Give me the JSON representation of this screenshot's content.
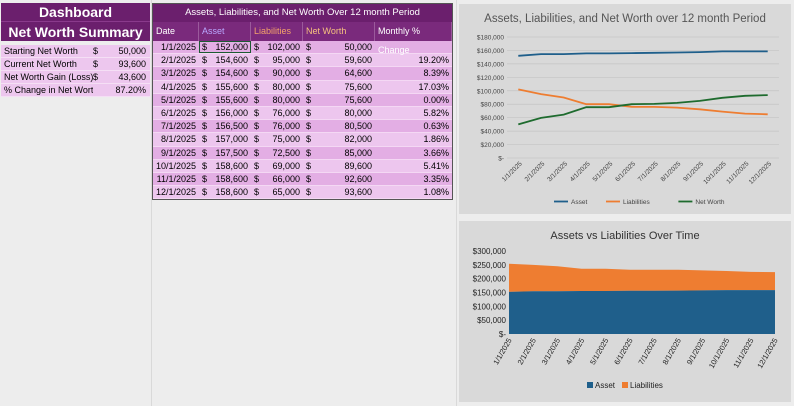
{
  "summary": {
    "title1": "Dashboard",
    "title2": "Net Worth Summary",
    "rows": [
      {
        "label": "Starting Net Worth",
        "cur": "$",
        "value": "50,000"
      },
      {
        "label": "Current Net Worth",
        "cur": "$",
        "value": "93,600"
      },
      {
        "label": "Net Worth Gain (Loss)",
        "cur": "$",
        "value": "43,600"
      },
      {
        "label": "% Change in Net Worth",
        "cur": "",
        "value": "87.20%"
      }
    ]
  },
  "table": {
    "title": "Assets, Liabilities, and Net Worth Over 12 month Period",
    "headers": {
      "date": "Date",
      "asset": "Asset",
      "liabilities": "Liabilities",
      "net_worth": "Net Worth",
      "pct": "Monthly % Change"
    },
    "rows": [
      {
        "date": "1/1/2025",
        "asset": "152,000",
        "liab": "102,000",
        "nw": "50,000",
        "pct": ""
      },
      {
        "date": "2/1/2025",
        "asset": "154,600",
        "liab": "95,000",
        "nw": "59,600",
        "pct": "19.20%"
      },
      {
        "date": "3/1/2025",
        "asset": "154,600",
        "liab": "90,000",
        "nw": "64,600",
        "pct": "8.39%"
      },
      {
        "date": "4/1/2025",
        "asset": "155,600",
        "liab": "80,000",
        "nw": "75,600",
        "pct": "17.03%"
      },
      {
        "date": "5/1/2025",
        "asset": "155,600",
        "liab": "80,000",
        "nw": "75,600",
        "pct": "0.00%"
      },
      {
        "date": "6/1/2025",
        "asset": "156,000",
        "liab": "76,000",
        "nw": "80,000",
        "pct": "5.82%"
      },
      {
        "date": "7/1/2025",
        "asset": "156,500",
        "liab": "76,000",
        "nw": "80,500",
        "pct": "0.63%"
      },
      {
        "date": "8/1/2025",
        "asset": "157,000",
        "liab": "75,000",
        "nw": "82,000",
        "pct": "1.86%"
      },
      {
        "date": "9/1/2025",
        "asset": "157,500",
        "liab": "72,500",
        "nw": "85,000",
        "pct": "3.66%"
      },
      {
        "date": "10/1/2025",
        "asset": "158,600",
        "liab": "69,000",
        "nw": "89,600",
        "pct": "5.41%"
      },
      {
        "date": "11/1/2025",
        "asset": "158,600",
        "liab": "66,000",
        "nw": "92,600",
        "pct": "3.35%"
      },
      {
        "date": "12/1/2025",
        "asset": "158,600",
        "liab": "65,000",
        "nw": "93,600",
        "pct": "1.08%"
      }
    ]
  },
  "colors": {
    "asset": "#1f5f8b",
    "liabilities": "#ee7d31",
    "net_worth": "#1e6b2e",
    "panel_bg": "#d9d9d9",
    "header_purple": "#6b1f6d"
  },
  "chart_data": [
    {
      "type": "line",
      "title": "Assets, Liabilities, and Net Worth over 12 month Period",
      "categories": [
        "1/1/2025",
        "2/1/2025",
        "3/1/2025",
        "4/1/2025",
        "5/1/2025",
        "6/1/2025",
        "7/1/2025",
        "8/1/2025",
        "9/1/2025",
        "10/1/2025",
        "11/1/2025",
        "12/1/2025"
      ],
      "series": [
        {
          "name": "Asset",
          "values": [
            152000,
            154600,
            154600,
            155600,
            155600,
            156000,
            156500,
            157000,
            157500,
            158600,
            158600,
            158600
          ]
        },
        {
          "name": "Liabilities",
          "values": [
            102000,
            95000,
            90000,
            80000,
            80000,
            76000,
            76000,
            75000,
            72500,
            69000,
            66000,
            65000
          ]
        },
        {
          "name": "Net Worth",
          "values": [
            50000,
            59600,
            64600,
            75600,
            75600,
            80000,
            80500,
            82000,
            85000,
            89600,
            92600,
            93600
          ]
        }
      ],
      "ylim": [
        0,
        180000
      ],
      "yticks": [
        "$-",
        "$20,000",
        "$40,000",
        "$60,000",
        "$80,000",
        "$100,000",
        "$120,000",
        "$140,000",
        "$160,000",
        "$180,000"
      ],
      "grid": true,
      "legend": "bottom"
    },
    {
      "type": "area",
      "stacked": true,
      "title": "Assets vs Liabilities Over Time",
      "categories": [
        "1/1/2025",
        "2/1/2025",
        "3/1/2025",
        "4/1/2025",
        "5/1/2025",
        "6/1/2025",
        "7/1/2025",
        "8/1/2025",
        "9/1/2025",
        "10/1/2025",
        "11/1/2025",
        "12/1/2025"
      ],
      "series": [
        {
          "name": "Asset",
          "values": [
            152000,
            154600,
            154600,
            155600,
            155600,
            156000,
            156500,
            157000,
            157500,
            158600,
            158600,
            158600
          ]
        },
        {
          "name": "Liabilities",
          "values": [
            102000,
            95000,
            90000,
            80000,
            80000,
            76000,
            76000,
            75000,
            72500,
            69000,
            66000,
            65000
          ]
        }
      ],
      "ylim": [
        0,
        300000
      ],
      "yticks": [
        "$-",
        "$50,000",
        "$100,000",
        "$150,000",
        "$200,000",
        "$250,000",
        "$300,000"
      ],
      "grid": false,
      "legend": "bottom"
    }
  ]
}
